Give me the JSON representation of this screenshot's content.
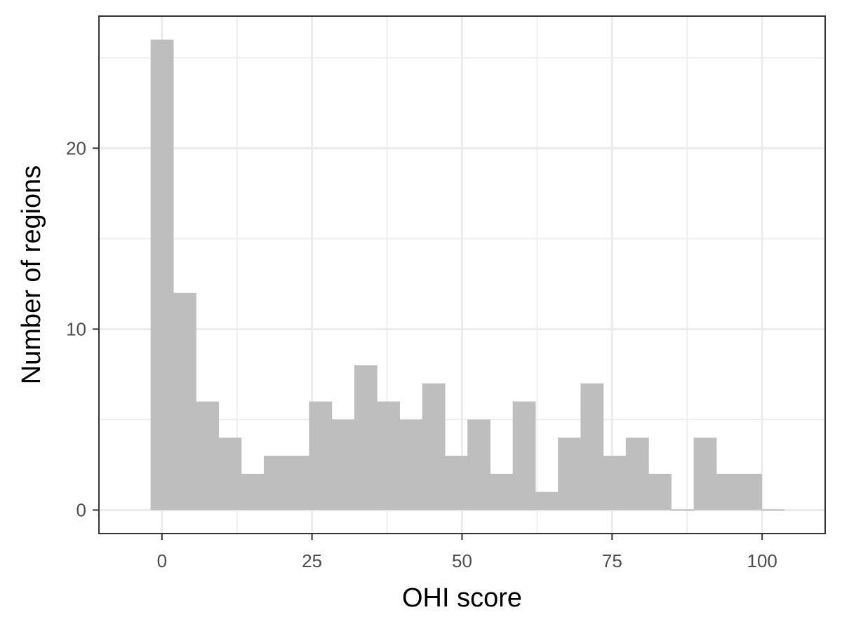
{
  "chart_data": {
    "type": "bar",
    "subtype": "histogram",
    "xlabel": "OHI score",
    "ylabel": "Number of regions",
    "xlim": [
      -10.5,
      110.5
    ],
    "ylim": [
      -1.3,
      27.3
    ],
    "bin_width": 3.77,
    "bin_centers": [
      0,
      3.77,
      7.54,
      11.31,
      15.08,
      18.85,
      22.62,
      26.39,
      30.16,
      33.93,
      37.7,
      41.47,
      45.24,
      49.01,
      52.78,
      56.55,
      60.32,
      64.09,
      67.86,
      71.63,
      75.4,
      79.17,
      82.94,
      86.71,
      90.48,
      94.25,
      98.02,
      101.79
    ],
    "counts": [
      26,
      12,
      6,
      4,
      2,
      3,
      3,
      6,
      5,
      8,
      6,
      5,
      7,
      3,
      5,
      2,
      6,
      1,
      4,
      7,
      3,
      4,
      2,
      0,
      4,
      2,
      2,
      0
    ],
    "x_ticks": [
      0,
      25,
      50,
      75,
      100
    ],
    "x_tick_labels": [
      "0",
      "25",
      "50",
      "75",
      "100"
    ],
    "y_ticks": [
      0,
      10,
      20
    ],
    "y_tick_labels": [
      "0",
      "10",
      "20"
    ],
    "grid": true,
    "colors": {
      "bar_fill": "#bebebe",
      "grid": "#ebebeb",
      "panel_border": "#333333",
      "tick_text": "#4d4d4d"
    }
  }
}
